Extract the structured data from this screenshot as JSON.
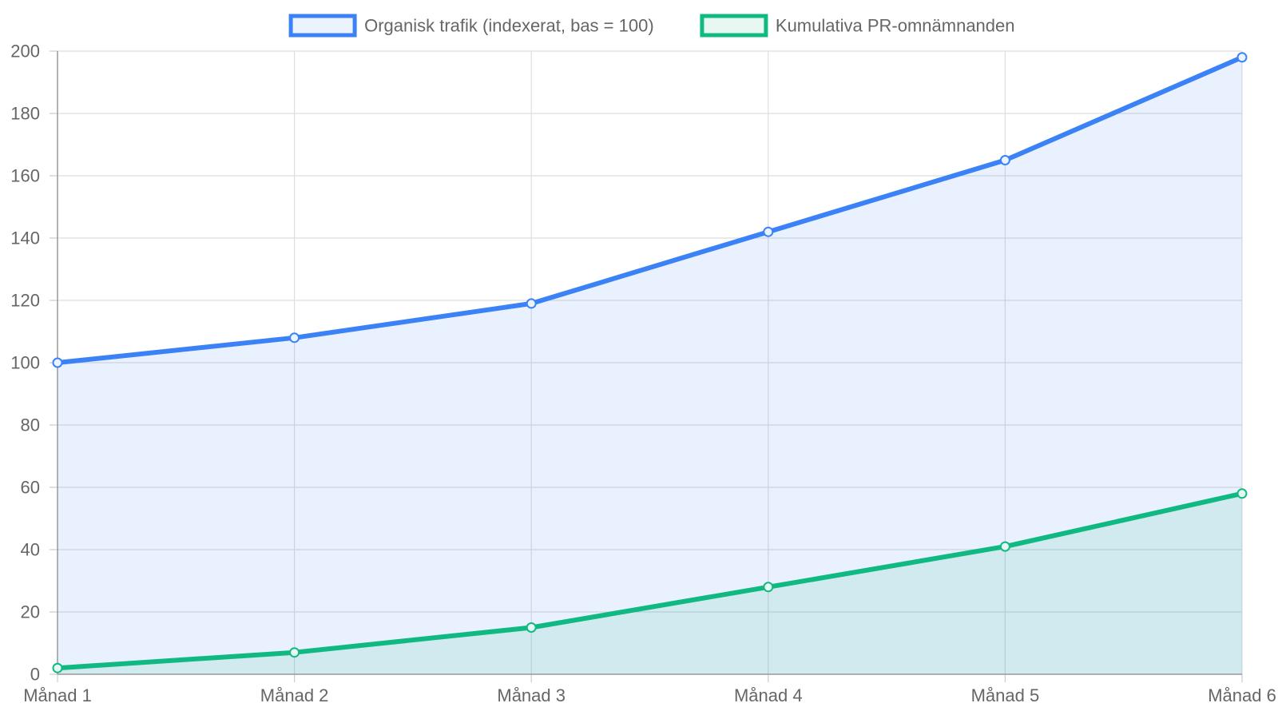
{
  "chart_data": {
    "type": "line",
    "categories": [
      "Månad 1",
      "Månad 2",
      "Månad 3",
      "Månad 4",
      "Månad 5",
      "Månad 6"
    ],
    "series": [
      {
        "name": "Organisk trafik (indexerat, bas = 100)",
        "values": [
          100,
          108,
          119,
          142,
          165,
          198
        ],
        "color": "#3b82f6",
        "fill": "rgba(59,130,246,0.11)",
        "legend_fill": "#ebf3fe"
      },
      {
        "name": "Kumulativa PR-omnämnanden",
        "values": [
          2,
          7,
          15,
          28,
          41,
          58
        ],
        "color": "#10b981",
        "fill": "rgba(16,185,129,0.11)",
        "legend_fill": "#e7f8f2"
      }
    ],
    "ylim": [
      0,
      200
    ],
    "yticks": [
      0,
      20,
      40,
      60,
      80,
      100,
      120,
      140,
      160,
      180,
      200
    ],
    "grid": true,
    "filled": true,
    "legend_position": "top"
  }
}
